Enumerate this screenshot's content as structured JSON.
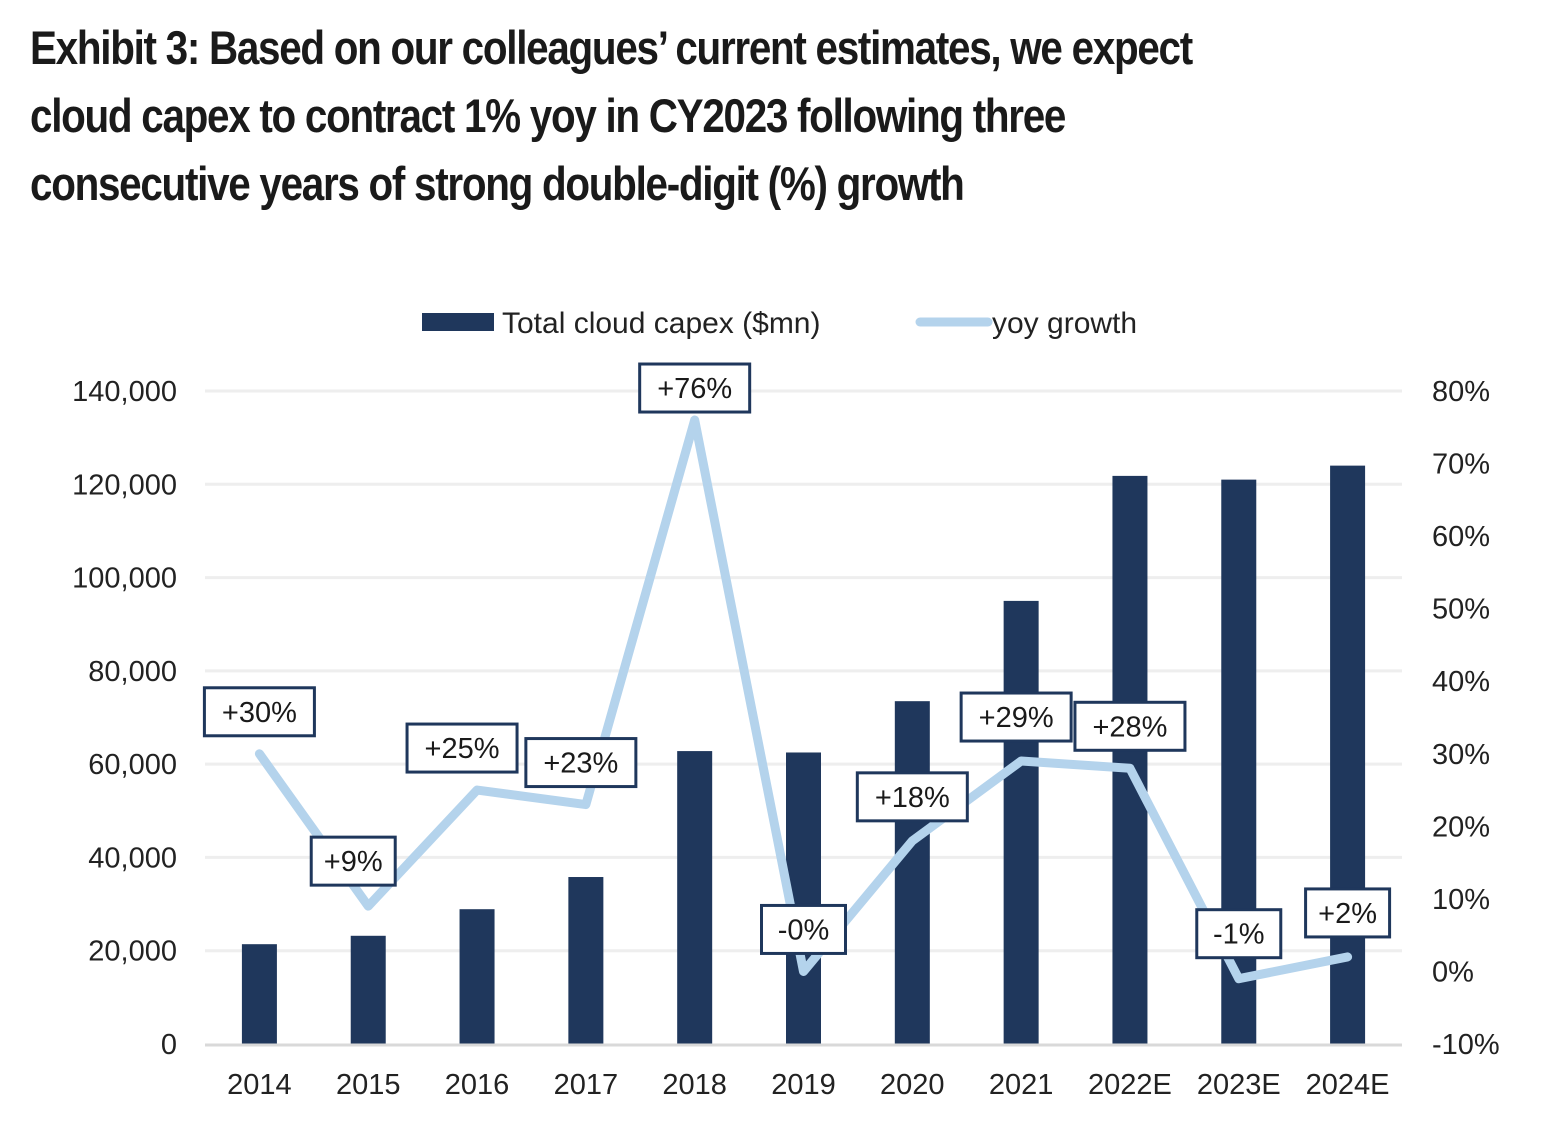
{
  "title": {
    "lines": [
      "Exhibit 3: Based on our colleagues’ current estimates, we expect",
      "cloud capex to contract 1% yoy in CY2023 following three",
      "consecutive years of strong double-digit (%) growth"
    ]
  },
  "colors": {
    "bar": "#1f375c",
    "line": "#b4d3ec",
    "label_border": "#1f375c",
    "grid": "#eeeeee",
    "axis": "#d9d9d9"
  },
  "chart_data": {
    "type": "bar+line",
    "title": "Exhibit 3: Based on our colleagues’ current estimates, we expect cloud capex to contract 1% yoy in CY2023 following three consecutive years of strong double-digit (%) growth",
    "categories": [
      "2014",
      "2015",
      "2016",
      "2017",
      "2018",
      "2019",
      "2020",
      "2021",
      "2022E",
      "2023E",
      "2024E"
    ],
    "series": [
      {
        "name": "Total cloud capex ($mn)",
        "type": "bar",
        "axis": "left",
        "values": [
          21400,
          23200,
          28900,
          35800,
          62800,
          62500,
          73500,
          95000,
          121800,
          121000,
          124000
        ]
      },
      {
        "name": "yoy growth",
        "type": "line",
        "axis": "right",
        "values": [
          30,
          9,
          25,
          23,
          76,
          0,
          18,
          29,
          28,
          -1,
          2
        ],
        "labels": [
          "+30%",
          "+9%",
          "+25%",
          "+23%",
          "+76%",
          "-0%",
          "+18%",
          "+29%",
          "+28%",
          "-1%",
          "+2%"
        ]
      }
    ],
    "left_axis": {
      "min": 0,
      "max": 140000,
      "step": 20000,
      "ticks": [
        "0",
        "20,000",
        "40,000",
        "60,000",
        "80,000",
        "100,000",
        "120,000",
        "140,000"
      ]
    },
    "right_axis": {
      "min": -10,
      "max": 80,
      "step": 10,
      "ticks": [
        "-10%",
        "0%",
        "10%",
        "20%",
        "30%",
        "40%",
        "50%",
        "60%",
        "70%",
        "80%"
      ]
    },
    "xlabel": "",
    "ylabel": "",
    "grid": true,
    "legend": {
      "placement": "top-center",
      "entries": [
        "Total cloud capex ($mn)",
        "yoy growth"
      ]
    }
  }
}
